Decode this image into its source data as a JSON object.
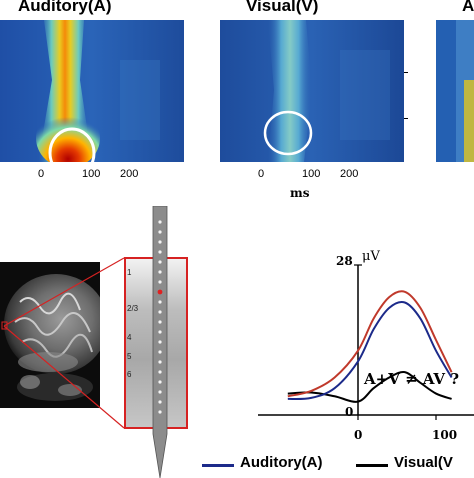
{
  "figure": {
    "panels_top": [
      {
        "title": "Auditory(A)"
      },
      {
        "title": "Visual(V)"
      },
      {
        "title": "A"
      }
    ],
    "time_ticks": [
      "0",
      "100",
      "200"
    ],
    "time_ticks_short": [
      "0",
      "100"
    ],
    "time_unit": "ms",
    "electrode": {
      "layers": [
        "1",
        "2/3",
        "4",
        "5",
        "6"
      ]
    },
    "waveform": {
      "y_unit": "μV",
      "y_top": "28",
      "y_bottom": "0",
      "x_ticks": [
        "0",
        "100"
      ],
      "equation": "A+V ≠ AV ?"
    },
    "legend": {
      "items": [
        {
          "label": "Auditory(A)",
          "color": "#1c2a8a"
        },
        {
          "label": "Visual(V",
          "color": "#000000"
        }
      ]
    }
  },
  "chart_data": {
    "type": "line",
    "title": "",
    "xlabel": "",
    "ylabel": "μV",
    "ylim": [
      0,
      28
    ],
    "x": [
      -90,
      -60,
      -30,
      0,
      20,
      40,
      60,
      80,
      100,
      120
    ],
    "series": [
      {
        "name": "Auditory(A)",
        "color": "#1c2a8a",
        "values": [
          3,
          3.2,
          5,
          10,
          16,
          20,
          21,
          18,
          12,
          7
        ]
      },
      {
        "name": "Visual(V",
        "color": "#000000",
        "values": [
          4,
          4.2,
          3.5,
          2.5,
          5,
          7,
          8,
          6,
          4,
          3
        ]
      },
      {
        "color": "#c0392b",
        "values": [
          3.5,
          4.5,
          7,
          12,
          18,
          22,
          23,
          20,
          14,
          8
        ]
      }
    ]
  }
}
